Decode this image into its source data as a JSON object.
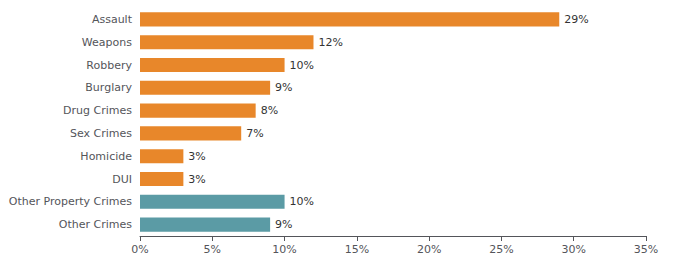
{
  "chart_data": {
    "type": "bar",
    "orientation": "horizontal",
    "categories": [
      "Assault",
      "Weapons",
      "Robbery",
      "Burglary",
      "Drug Crimes",
      "Sex Crimes",
      "Homicide",
      "DUI",
      "Other Property Crimes",
      "Other Crimes"
    ],
    "values": [
      29,
      12,
      10,
      9,
      8,
      7,
      3,
      3,
      10,
      9
    ],
    "value_labels": [
      "29%",
      "12%",
      "10%",
      "9%",
      "8%",
      "7%",
      "3%",
      "3%",
      "10%",
      "9%"
    ],
    "colors": [
      "#E8872A",
      "#E8872A",
      "#E8872A",
      "#E8872A",
      "#E8872A",
      "#E8872A",
      "#E8872A",
      "#E8872A",
      "#5B9BA5",
      "#5B9BA5"
    ],
    "data_labels": true,
    "xlim": [
      0,
      35
    ],
    "xticks": [
      {
        "value": 0,
        "label": "0%"
      },
      {
        "value": 5,
        "label": "5%"
      },
      {
        "value": 10,
        "label": "10%"
      },
      {
        "value": 15,
        "label": "15%"
      },
      {
        "value": 20,
        "label": "20%"
      },
      {
        "value": 25,
        "label": "25%"
      },
      {
        "value": 30,
        "label": "30%"
      },
      {
        "value": 35,
        "label": "35%"
      }
    ],
    "grid": false
  }
}
